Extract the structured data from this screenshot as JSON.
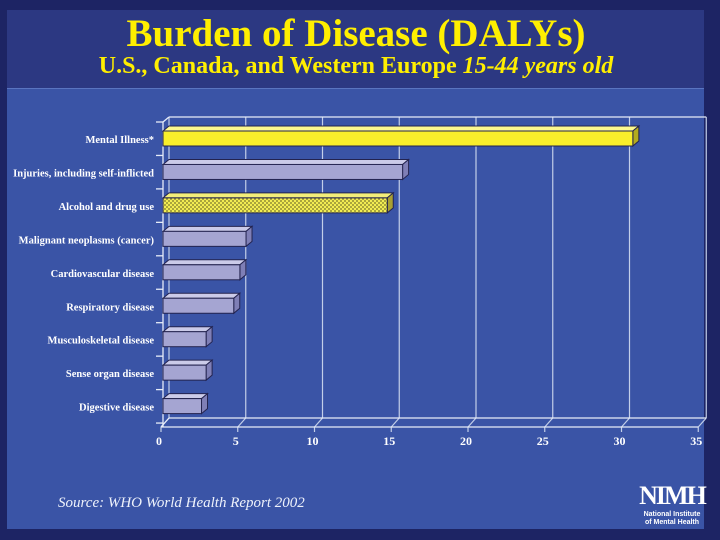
{
  "slide": {
    "title": "Burden of Disease (DALYs)",
    "subtitle_main": "U.S., Canada, and Western Europe ",
    "subtitle_italic": "15-44 years old",
    "source": "Source:  WHO World Health Report 2002",
    "logo": {
      "acronym": "NIMH",
      "line1": "National Institute",
      "line2": "of Mental Health"
    },
    "colors": {
      "frame": "#1d2464",
      "title_bg": "#2c3882",
      "panel_bg": "#3a54a6",
      "title_text": "#ffef00",
      "label_text": "#ffffff",
      "gridline": "#c3cfe9",
      "axis_line": "#e6ecf8"
    }
  },
  "chart_data": {
    "type": "bar",
    "orientation": "horizontal",
    "title": "Burden of Disease (DALYs)",
    "subtitle": "U.S., Canada, and Western Europe 15-44 years old",
    "categories": [
      "Mental Illness*",
      "Injuries, including self-inflicted",
      "Alcohol and drug use",
      "Malignant neoplasms (cancer)",
      "Cardiovascular disease",
      "Respiratory disease",
      "Musculoskeletal disease",
      "Sense organ disease",
      "Digestive disease"
    ],
    "values": [
      31,
      16,
      15,
      5.8,
      5.4,
      5,
      3.2,
      3.2,
      2.9
    ],
    "bar_style_keys": [
      "yellow",
      "purple",
      "yellow_dots",
      "purple",
      "purple",
      "purple",
      "purple",
      "purple",
      "purple"
    ],
    "bar_styles": {
      "yellow": {
        "front": "#f9ef2b",
        "top": "#fdf98e",
        "side": "#b3ab1e",
        "stroke": "#23234f"
      },
      "purple": {
        "front": "#a5a5d2",
        "top": "#cbcbe9",
        "side": "#7f7fb6",
        "stroke": "#23234f"
      },
      "yellow_dots": {
        "front": "pattern",
        "top": "#f3ee7a",
        "side": "#a9a032",
        "stroke": "#23234f",
        "pattern_base": "#f2ec52",
        "pattern_dot": "#77732c"
      }
    },
    "xlim": [
      0,
      35
    ],
    "xticks": [
      0,
      5,
      10,
      15,
      20,
      25,
      30,
      35
    ],
    "grid": true,
    "legend": "none",
    "source": "WHO World Health Report 2002"
  }
}
